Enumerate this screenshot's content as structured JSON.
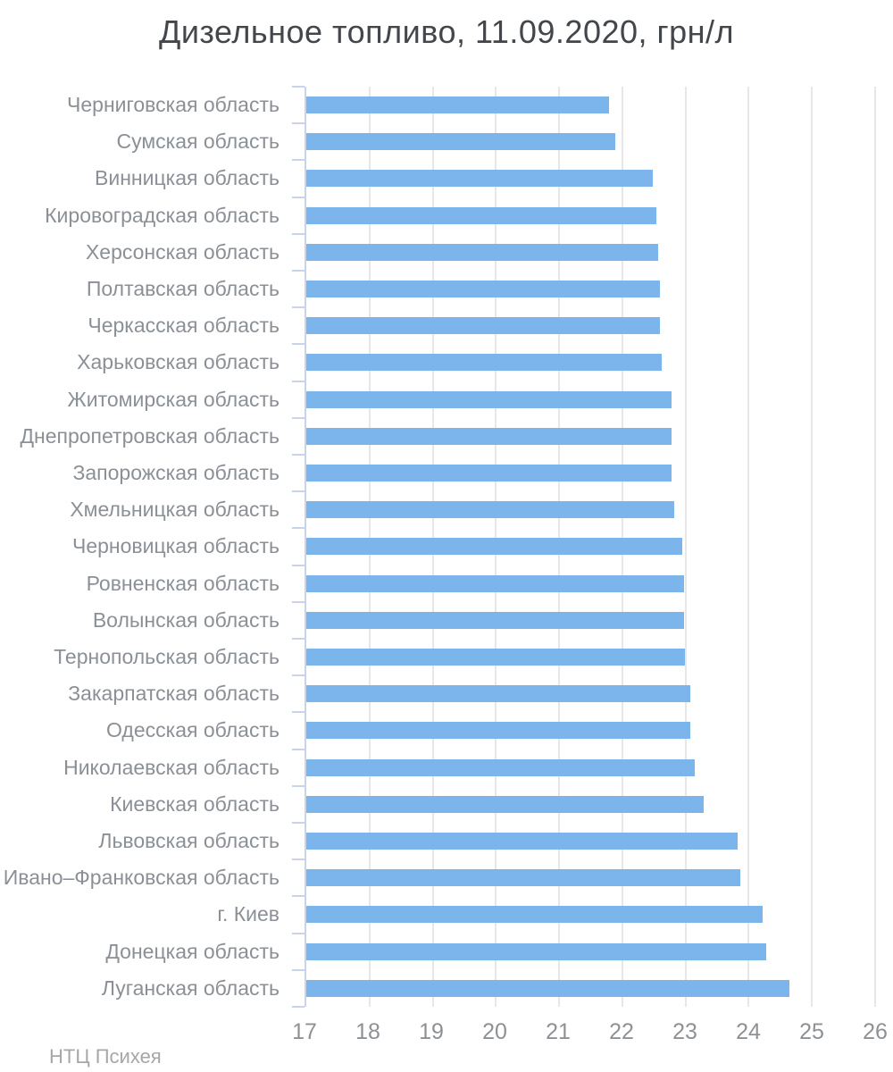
{
  "chart_data": {
    "type": "bar",
    "orientation": "horizontal",
    "title": "Дизельное топливо, 11.09.2020, грн/л",
    "credit": "НТЦ Психея",
    "xlabel": "",
    "ylabel": "",
    "legend": false,
    "grid": true,
    "xlim": [
      17,
      26
    ],
    "x_ticks": [
      17,
      18,
      19,
      20,
      21,
      22,
      23,
      24,
      25,
      26
    ],
    "categories": [
      "Черниговская область",
      "Сумская область",
      "Винницкая область",
      "Кировоградская область",
      "Херсонская область",
      "Полтавская область",
      "Черкасская область",
      "Харьковская область",
      "Житомирская область",
      "Днепропетровская область",
      "Запорожская область",
      "Хмельницкая область",
      "Черновицкая область",
      "Ровненская область",
      "Волынская область",
      "Тернопольская область",
      "Закарпатская область",
      "Одесская область",
      "Николаевская область",
      "Киевская область",
      "Львовская область",
      "Ивано–Франковская область",
      "г. Киев",
      "Донецкая область",
      "Луганская область"
    ],
    "values": [
      21.79,
      21.89,
      22.48,
      22.54,
      22.56,
      22.59,
      22.59,
      22.62,
      22.78,
      22.78,
      22.78,
      22.82,
      22.95,
      22.98,
      22.98,
      22.99,
      23.07,
      23.07,
      23.15,
      23.29,
      23.83,
      23.86,
      24.22,
      24.28,
      24.65
    ],
    "colors": {
      "background": "#ffffff",
      "bar": "#7cb5ec",
      "axis": "#c9d4ea",
      "gridline": "#e7e7e7",
      "title_text": "#43464b",
      "category_text": "#8b9097",
      "tick_text": "#8d9196",
      "credit_text": "#a7a7a7"
    }
  }
}
